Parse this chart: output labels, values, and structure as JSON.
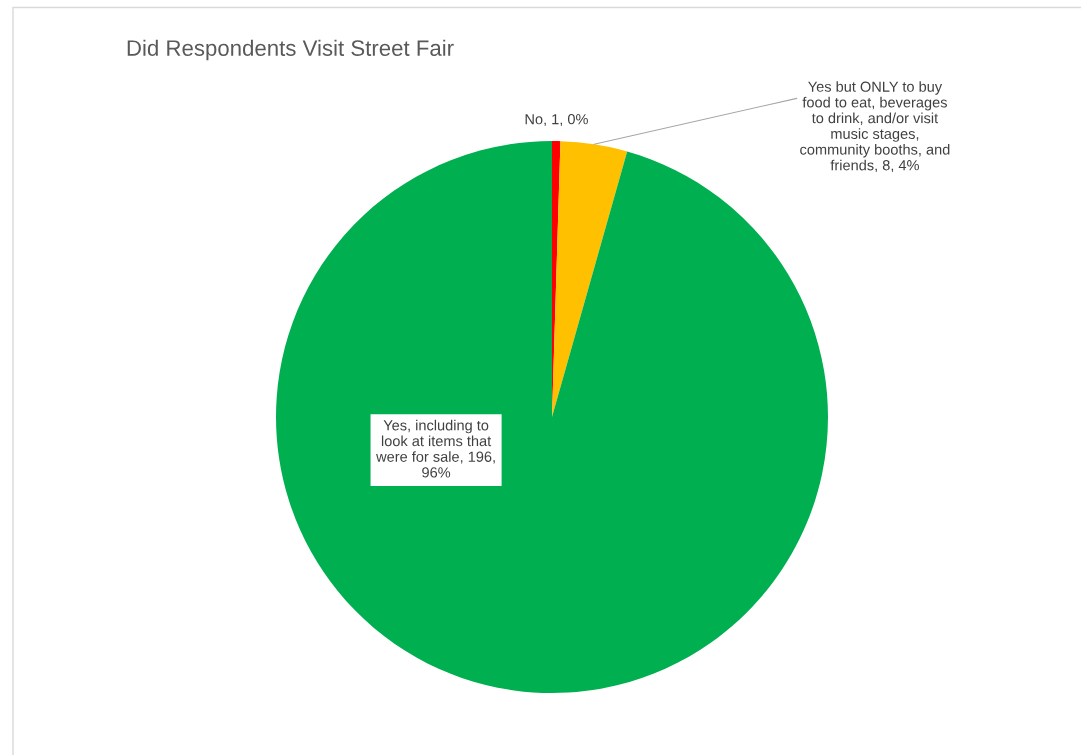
{
  "chart_data": {
    "type": "pie",
    "title": "Did Respondents Visit Street Fair",
    "categories": [
      "No",
      "Yes but ONLY to buy food to eat, beverages to drink, and/or visit music stages, community booths, and friends",
      "Yes, including to look at items that were for sale"
    ],
    "values": [
      1,
      8,
      196
    ],
    "colors": [
      "#ff0000",
      "#ffc000",
      "#00b050"
    ],
    "value_labels": [
      "1, 0%",
      "8, 4%",
      "196, 96%"
    ],
    "legend": false
  }
}
